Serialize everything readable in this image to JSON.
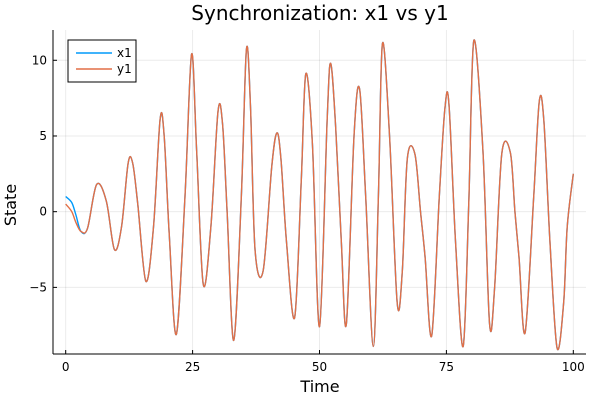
{
  "chart_data": {
    "type": "line",
    "title": "Synchronization: x1 vs y1",
    "xlabel": "Time",
    "ylabel": "State",
    "xlim": [
      -2.5,
      102.5
    ],
    "ylim": [
      -9.4,
      12
    ],
    "xticks": [
      0,
      25,
      50,
      75,
      100
    ],
    "xtick_labels": [
      "0",
      "25",
      "50",
      "75",
      "100"
    ],
    "yticks": [
      -5,
      0,
      5,
      10
    ],
    "ytick_labels": [
      "−5",
      "0",
      "5",
      "10"
    ],
    "grid": true,
    "legend_position": "top-left",
    "series": [
      {
        "name": "x1",
        "color": "#009AFA",
        "x": [
          0,
          1.2,
          2.0,
          3.0,
          4.3,
          6.1,
          8.0,
          9.6,
          11.0,
          12.3,
          13.2,
          14.2,
          15.8,
          17.3,
          18.6,
          19.4,
          20.4,
          21.8,
          23.5,
          24.8,
          25.8,
          27.1,
          28.6,
          30.0,
          30.9,
          31.8,
          33.1,
          34.6,
          35.6,
          36.4,
          37.3,
          38.9,
          40.6,
          41.6,
          42.4,
          43.5,
          45.1,
          46.4,
          47.3,
          48.6,
          50.0,
          51.5,
          52.2,
          53.2,
          54.3,
          55.3,
          56.8,
          57.9,
          59.1,
          60.6,
          61.6,
          62.4,
          63.8,
          65.3,
          66.3,
          67.3,
          68.8,
          69.9,
          70.8,
          72.1,
          73.6,
          74.7,
          75.5,
          76.8,
          78.3,
          79.4,
          80.4,
          82.2,
          83.5,
          84.5,
          85.9,
          87.6,
          88.5,
          89.3,
          90.5,
          92.2,
          93.3,
          94.2,
          95.4,
          96.8,
          98.1,
          98.8,
          100
        ],
        "y": [
          1.0,
          0.6,
          -0.2,
          -1.3,
          -1.1,
          1.8,
          0.7,
          -2.5,
          -1.0,
          3.2,
          3.2,
          0.5,
          -4.6,
          -1.0,
          6.1,
          5.0,
          -1.5,
          -8.1,
          1.0,
          10.4,
          4.0,
          -4.8,
          -1.0,
          6.6,
          5.8,
          0.0,
          -8.5,
          1.0,
          10.7,
          7.0,
          -2.5,
          -3.9,
          3.0,
          5.2,
          3.5,
          -2.0,
          -7.0,
          2.0,
          9.1,
          4.5,
          -7.6,
          6.0,
          9.8,
          5.5,
          -2.0,
          -7.4,
          5.0,
          8.1,
          1.0,
          -8.9,
          1.0,
          11.1,
          5.0,
          -6.0,
          -4.0,
          3.5,
          3.8,
          0.0,
          -3.0,
          -8.2,
          1.0,
          6.8,
          7.1,
          -2.0,
          -8.9,
          0.5,
          11.3,
          4.0,
          -7.4,
          -5.0,
          3.8,
          3.9,
          0.0,
          -3.0,
          -8.0,
          1.0,
          7.3,
          6.0,
          -2.0,
          -9.0,
          -6.0,
          -1.0,
          2.5
        ]
      },
      {
        "name": "y1",
        "color": "#E26F46",
        "x": [
          0,
          1.2,
          2.0,
          3.0,
          4.3,
          6.1,
          8.0,
          9.6,
          11.0,
          12.3,
          13.2,
          14.2,
          15.8,
          17.3,
          18.6,
          19.4,
          20.4,
          21.8,
          23.5,
          24.8,
          25.8,
          27.1,
          28.6,
          30.0,
          30.9,
          31.8,
          33.1,
          34.6,
          35.6,
          36.4,
          37.3,
          38.9,
          40.6,
          41.6,
          42.4,
          43.5,
          45.1,
          46.4,
          47.3,
          48.6,
          50.0,
          51.5,
          52.2,
          53.2,
          54.3,
          55.3,
          56.8,
          57.9,
          59.1,
          60.6,
          61.6,
          62.4,
          63.8,
          65.3,
          66.3,
          67.3,
          68.8,
          69.9,
          70.8,
          72.1,
          73.6,
          74.7,
          75.5,
          76.8,
          78.3,
          79.4,
          80.4,
          82.2,
          83.5,
          84.5,
          85.9,
          87.6,
          88.5,
          89.3,
          90.5,
          92.2,
          93.3,
          94.2,
          95.4,
          96.8,
          98.1,
          98.8,
          100
        ],
        "y": [
          0.5,
          0.0,
          -0.7,
          -1.3,
          -1.1,
          1.8,
          0.7,
          -2.5,
          -1.0,
          3.2,
          3.2,
          0.5,
          -4.6,
          -1.0,
          6.1,
          5.0,
          -1.5,
          -8.1,
          1.0,
          10.4,
          4.0,
          -4.8,
          -1.0,
          6.6,
          5.8,
          0.0,
          -8.5,
          1.0,
          10.7,
          7.0,
          -2.5,
          -3.9,
          3.0,
          5.2,
          3.5,
          -2.0,
          -7.0,
          2.0,
          9.1,
          4.5,
          -7.6,
          6.0,
          9.8,
          5.5,
          -2.0,
          -7.4,
          5.0,
          8.1,
          1.0,
          -8.9,
          1.0,
          11.1,
          5.0,
          -6.0,
          -4.0,
          3.5,
          3.8,
          0.0,
          -3.0,
          -8.2,
          1.0,
          6.8,
          7.1,
          -2.0,
          -8.9,
          0.5,
          11.3,
          4.0,
          -7.4,
          -5.0,
          3.8,
          3.9,
          0.0,
          -3.0,
          -8.0,
          1.0,
          7.3,
          6.0,
          -2.0,
          -9.0,
          -6.0,
          -1.0,
          2.5
        ]
      }
    ]
  }
}
